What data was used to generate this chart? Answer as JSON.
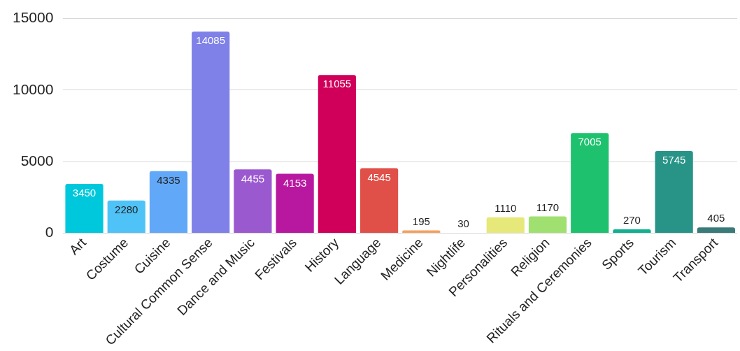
{
  "chart_data": {
    "type": "bar",
    "categories": [
      "Art",
      "Costume",
      "Cuisine",
      "Cultural Common Sense",
      "Dance and Music",
      "Festivals",
      "History",
      "Language",
      "Medicine",
      "Nightlife",
      "Personalities",
      "Religion",
      "Rituals and Ceremonies",
      "Sports",
      "Tourism",
      "Transport"
    ],
    "values": [
      3450,
      2280,
      4335,
      14085,
      4455,
      4153,
      11055,
      4545,
      195,
      30,
      1110,
      1170,
      7005,
      270,
      5745,
      405
    ],
    "colors": [
      "#00c8dc",
      "#4fc3f7",
      "#62a8f8",
      "#7f80e8",
      "#9b59d0",
      "#b818a0",
      "#d0005a",
      "#e05048",
      "#f4a060",
      "#f08090",
      "#e6e87a",
      "#a0e070",
      "#1ec26e",
      "#10b090",
      "#289488",
      "#3a7a78"
    ],
    "ylim": [
      0,
      15000
    ],
    "yticks": [
      0,
      5000,
      10000,
      15000
    ],
    "grid": "y",
    "data_labels": true
  }
}
